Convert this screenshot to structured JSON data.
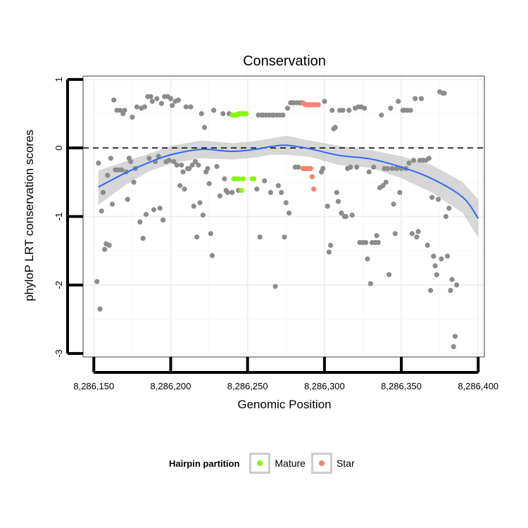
{
  "chart_data": {
    "type": "scatter",
    "title": "Conservation",
    "xlabel": "Genomic Position",
    "ylabel": "phyloP LRT conservation scores",
    "xlim": [
      8286143,
      8286404
    ],
    "ylim": [
      -3.05,
      1.05
    ],
    "x_ticks": [
      {
        "value": 8286150,
        "label": "8,286,150"
      },
      {
        "value": 8286200,
        "label": "8,286,200"
      },
      {
        "value": 8286250,
        "label": "8,286,250"
      },
      {
        "value": 8286300,
        "label": "8,286,300"
      },
      {
        "value": 8286350,
        "label": "8,286,350"
      },
      {
        "value": 8286400,
        "label": "8,286,400"
      }
    ],
    "y_ticks": [
      {
        "value": 1,
        "label": "1"
      },
      {
        "value": 0,
        "label": "0"
      },
      {
        "value": -1,
        "label": "-1"
      },
      {
        "value": -2,
        "label": "-2"
      },
      {
        "value": -3,
        "label": "-3"
      }
    ],
    "grid": true,
    "reference_line": {
      "y": 0,
      "style": "dashed"
    },
    "legend": {
      "title": "Hairpin partition",
      "position": "bottom",
      "entries": [
        {
          "label": "Mature",
          "color": "#80ff00"
        },
        {
          "label": "Star",
          "color": "#fa8072"
        }
      ]
    },
    "colors": {
      "background": "#ffffff",
      "points": "#8c8c8c",
      "smooth": "#3366ff",
      "ribbon": "#bdbdbd"
    },
    "series": [
      {
        "group": "Other",
        "color": "#8c8c8c",
        "points": [
          [
            8286152,
            -1.95
          ],
          [
            8286153,
            -0.22
          ],
          [
            8286154,
            -2.35
          ],
          [
            8286155,
            -0.92
          ],
          [
            8286156,
            -0.65
          ],
          [
            8286157,
            -1.48
          ],
          [
            8286158,
            -1.4
          ],
          [
            8286159,
            -0.4
          ],
          [
            8286160,
            -1.42
          ],
          [
            8286161,
            -0.15
          ],
          [
            8286162,
            -0.82
          ],
          [
            8286163,
            0.7
          ],
          [
            8286164,
            -0.32
          ],
          [
            8286165,
            0.55
          ],
          [
            8286166,
            -0.32
          ],
          [
            8286167,
            0.55
          ],
          [
            8286168,
            -0.32
          ],
          [
            8286169,
            0.5
          ],
          [
            8286170,
            0.55
          ],
          [
            8286171,
            -0.35
          ],
          [
            8286172,
            -0.75
          ],
          [
            8286173,
            -0.15
          ],
          [
            8286174,
            -0.2
          ],
          [
            8286175,
            0.45
          ],
          [
            8286176,
            -0.5
          ],
          [
            8286177,
            -0.3
          ],
          [
            8286178,
            0.6
          ],
          [
            8286180,
            -1.08
          ],
          [
            8286181,
            0.58
          ],
          [
            8286182,
            -1.32
          ],
          [
            8286183,
            0.6
          ],
          [
            8286184,
            -0.97
          ],
          [
            8286185,
            0.75
          ],
          [
            8286186,
            -0.15
          ],
          [
            8286187,
            0.75
          ],
          [
            8286188,
            0.68
          ],
          [
            8286189,
            -0.9
          ],
          [
            8286190,
            -0.2
          ],
          [
            8286191,
            0.72
          ],
          [
            8286192,
            -0.12
          ],
          [
            8286193,
            -0.88
          ],
          [
            8286194,
            0.65
          ],
          [
            8286195,
            -1.05
          ],
          [
            8286196,
            0.75
          ],
          [
            8286197,
            -0.2
          ],
          [
            8286198,
            0.75
          ],
          [
            8286199,
            -0.18
          ],
          [
            8286200,
            0.72
          ],
          [
            8286201,
            0.62
          ],
          [
            8286202,
            -0.2
          ],
          [
            8286203,
            0.68
          ],
          [
            8286204,
            -0.25
          ],
          [
            8286205,
            0.7
          ],
          [
            8286206,
            -0.55
          ],
          [
            8286207,
            -0.25
          ],
          [
            8286208,
            -0.35
          ],
          [
            8286209,
            -0.6
          ],
          [
            8286210,
            0.6
          ],
          [
            8286211,
            -0.3
          ],
          [
            8286212,
            -0.3
          ],
          [
            8286213,
            0.6
          ],
          [
            8286214,
            -0.25
          ],
          [
            8286215,
            -0.85
          ],
          [
            8286216,
            -0.2
          ],
          [
            8286217,
            -1.3
          ],
          [
            8286218,
            -0.25
          ],
          [
            8286219,
            -0.8
          ],
          [
            8286220,
            0.5
          ],
          [
            8286221,
            -0.98
          ],
          [
            8286222,
            0.3
          ],
          [
            8286223,
            -0.35
          ],
          [
            8286224,
            -0.3
          ],
          [
            8286225,
            -0.52
          ],
          [
            8286226,
            -1.25
          ],
          [
            8286227,
            -1.57
          ],
          [
            8286228,
            0.55
          ],
          [
            8286230,
            -0.27
          ],
          [
            8286232,
            -0.7
          ],
          [
            8286234,
            0.5
          ],
          [
            8286235,
            -0.45
          ],
          [
            8286236,
            -0.62
          ],
          [
            8286237,
            -0.65
          ],
          [
            8286238,
            0.5
          ],
          [
            8286240,
            -0.65
          ],
          [
            8286244,
            -0.62
          ],
          [
            8286256,
            -0.6
          ],
          [
            8286258,
            -1.3
          ],
          [
            8286257,
            0.48
          ],
          [
            8286259,
            0.48
          ],
          [
            8286260,
            0.48
          ],
          [
            8286261,
            -0.48
          ],
          [
            8286262,
            0.48
          ],
          [
            8286264,
            0.48
          ],
          [
            8286265,
            -0.65
          ],
          [
            8286266,
            0.48
          ],
          [
            8286267,
            0.48
          ],
          [
            8286268,
            -2.02
          ],
          [
            8286269,
            0.48
          ],
          [
            8286270,
            -0.55
          ],
          [
            8286271,
            0.48
          ],
          [
            8286272,
            -0.65
          ],
          [
            8286273,
            0.48
          ],
          [
            8286274,
            -1.3
          ],
          [
            8286275,
            -0.8
          ],
          [
            8286276,
            0.58
          ],
          [
            8286277,
            -0.95
          ],
          [
            8286278,
            0.66
          ],
          [
            8286279,
            0.66
          ],
          [
            8286280,
            0.66
          ],
          [
            8286281,
            -0.28
          ],
          [
            8286282,
            0.66
          ],
          [
            8286283,
            -0.28
          ],
          [
            8286284,
            0.66
          ],
          [
            8286285,
            0.66
          ],
          [
            8286298,
            -0.35
          ],
          [
            8286299,
            -0.3
          ],
          [
            8286300,
            0.68
          ],
          [
            8286302,
            -0.85
          ],
          [
            8286303,
            -1.52
          ],
          [
            8286304,
            -1.42
          ],
          [
            8286305,
            0.55
          ],
          [
            8286306,
            0.28
          ],
          [
            8286307,
            0.3
          ],
          [
            8286308,
            -0.65
          ],
          [
            8286309,
            -0.78
          ],
          [
            8286310,
            0.55
          ],
          [
            8286311,
            -0.95
          ],
          [
            8286312,
            0.55
          ],
          [
            8286313,
            -1.0
          ],
          [
            8286314,
            -1.0
          ],
          [
            8286315,
            -0.3
          ],
          [
            8286316,
            0.55
          ],
          [
            8286317,
            -0.28
          ],
          [
            8286318,
            -0.98
          ],
          [
            8286320,
            0.58
          ],
          [
            8286321,
            -0.28
          ],
          [
            8286322,
            0.6
          ],
          [
            8286323,
            -1.38
          ],
          [
            8286324,
            0.6
          ],
          [
            8286325,
            -1.38
          ],
          [
            8286326,
            0.58
          ],
          [
            8286327,
            -1.38
          ],
          [
            8286328,
            -1.62
          ],
          [
            8286329,
            -0.35
          ],
          [
            8286330,
            -1.98
          ],
          [
            8286331,
            -1.38
          ],
          [
            8286332,
            -0.28
          ],
          [
            8286333,
            -1.38
          ],
          [
            8286334,
            -1.28
          ],
          [
            8286335,
            -1.38
          ],
          [
            8286336,
            -0.58
          ],
          [
            8286337,
            0.48
          ],
          [
            8286338,
            -0.55
          ],
          [
            8286339,
            -0.3
          ],
          [
            8286340,
            -0.5
          ],
          [
            8286341,
            -0.3
          ],
          [
            8286342,
            -1.85
          ],
          [
            8286343,
            0.58
          ],
          [
            8286344,
            -0.3
          ],
          [
            8286345,
            -0.82
          ],
          [
            8286346,
            -1.25
          ],
          [
            8286347,
            -0.3
          ],
          [
            8286348,
            0.68
          ],
          [
            8286349,
            -0.65
          ],
          [
            8286350,
            -0.3
          ],
          [
            8286351,
            0.55
          ],
          [
            8286352,
            0.55
          ],
          [
            8286353,
            -0.3
          ],
          [
            8286354,
            0.55
          ],
          [
            8286355,
            -0.22
          ],
          [
            8286356,
            0.55
          ],
          [
            8286357,
            -1.25
          ],
          [
            8286358,
            -0.18
          ],
          [
            8286359,
            0.72
          ],
          [
            8286360,
            -1.3
          ],
          [
            8286361,
            -1.22
          ],
          [
            8286362,
            -0.18
          ],
          [
            8286363,
            0.72
          ],
          [
            8286364,
            -0.18
          ],
          [
            8286366,
            -0.18
          ],
          [
            8286367,
            -1.42
          ],
          [
            8286368,
            -0.15
          ],
          [
            8286369,
            -2.08
          ],
          [
            8286370,
            -0.72
          ],
          [
            8286371,
            -1.58
          ],
          [
            8286372,
            -1.72
          ],
          [
            8286373,
            -1.85
          ],
          [
            8286374,
            -0.75
          ],
          [
            8286375,
            0.82
          ],
          [
            8286376,
            -1.62
          ],
          [
            8286377,
            0.8
          ],
          [
            8286378,
            0.8
          ],
          [
            8286379,
            -1.0
          ],
          [
            8286380,
            -1.58
          ],
          [
            8286381,
            -0.88
          ],
          [
            8286382,
            -2.08
          ],
          [
            8286383,
            -1.92
          ],
          [
            8286384,
            -2.9
          ],
          [
            8286385,
            -2.75
          ],
          [
            8286386,
            -2.0
          ]
        ]
      },
      {
        "group": "Mature",
        "color": "#80ff00",
        "points": [
          [
            8286240,
            0.48
          ],
          [
            8286241,
            0.48
          ],
          [
            8286242,
            0.48
          ],
          [
            8286243,
            0.48
          ],
          [
            8286244,
            0.5
          ],
          [
            8286245,
            0.5
          ],
          [
            8286246,
            0.5
          ],
          [
            8286247,
            0.5
          ],
          [
            8286248,
            0.5
          ],
          [
            8286249,
            0.5
          ],
          [
            8286241,
            -0.45
          ],
          [
            8286242,
            -0.45
          ],
          [
            8286244,
            -0.45
          ],
          [
            8286246,
            -0.62
          ],
          [
            8286247,
            -0.45
          ],
          [
            8286253,
            -0.45
          ],
          [
            8286254,
            -0.45
          ]
        ]
      },
      {
        "group": "Star",
        "color": "#fa8072",
        "points": [
          [
            8286286,
            0.66
          ],
          [
            8286287,
            0.64
          ],
          [
            8286288,
            0.63
          ],
          [
            8286289,
            0.63
          ],
          [
            8286290,
            0.63
          ],
          [
            8286291,
            0.63
          ],
          [
            8286292,
            0.63
          ],
          [
            8286293,
            0.63
          ],
          [
            8286294,
            0.63
          ],
          [
            8286295,
            0.63
          ],
          [
            8286296,
            0.63
          ],
          [
            8286286,
            -0.3
          ],
          [
            8286287,
            -0.3
          ],
          [
            8286288,
            -0.3
          ],
          [
            8286289,
            -0.3
          ],
          [
            8286290,
            -0.3
          ],
          [
            8286291,
            -0.3
          ],
          [
            8286292,
            -0.42
          ],
          [
            8286293,
            -0.6
          ]
        ]
      },
      {
        "group": "Smooth",
        "type": "loess",
        "color": "#3366ff",
        "x": [
          8286153,
          8286170,
          8286185,
          8286200,
          8286220,
          8286240,
          8286255,
          8286265,
          8286275,
          8286290,
          8286310,
          8286330,
          8286350,
          8286370,
          8286390,
          8286400
        ],
        "y": [
          -0.57,
          -0.37,
          -0.22,
          -0.1,
          -0.02,
          -0.05,
          -0.02,
          0.02,
          0.04,
          -0.01,
          -0.11,
          -0.16,
          -0.28,
          -0.45,
          -0.72,
          -1.03
        ],
        "upper": [
          -0.33,
          -0.2,
          -0.09,
          0.03,
          0.11,
          0.07,
          0.1,
          0.14,
          0.18,
          0.11,
          0.03,
          -0.03,
          -0.12,
          -0.25,
          -0.5,
          -0.75
        ],
        "lower": [
          -0.83,
          -0.55,
          -0.35,
          -0.23,
          -0.15,
          -0.17,
          -0.14,
          -0.1,
          -0.1,
          -0.13,
          -0.25,
          -0.29,
          -0.44,
          -0.65,
          -0.95,
          -1.31
        ]
      }
    ]
  }
}
